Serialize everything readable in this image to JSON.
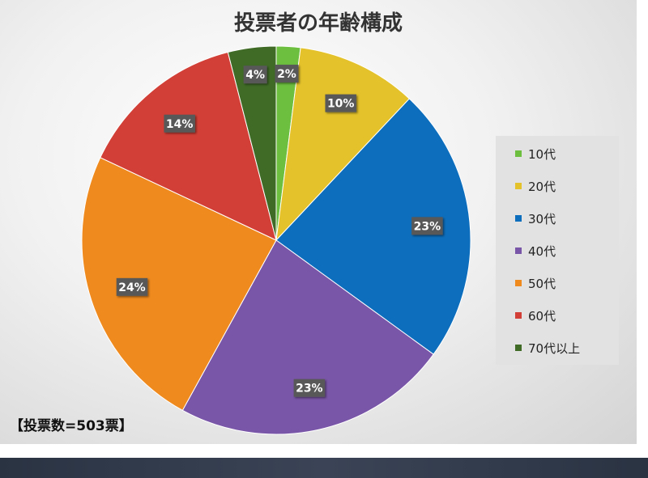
{
  "chart_data": {
    "type": "pie",
    "title": "投票者の年齢構成",
    "categories": [
      "10代",
      "20代",
      "30代",
      "40代",
      "50代",
      "60代",
      "70代以上"
    ],
    "values": [
      2,
      10,
      23,
      23,
      24,
      14,
      4
    ],
    "labels": [
      "2%",
      "10%",
      "23%",
      "23%",
      "24%",
      "14%",
      "4%"
    ],
    "colors": [
      "#6cbf3f",
      "#e4c22b",
      "#0d6ebd",
      "#7a56a8",
      "#ef8a1e",
      "#d23f36",
      "#3f6b26"
    ],
    "legend_position": "right",
    "annotation": "【投票数=503票】"
  }
}
